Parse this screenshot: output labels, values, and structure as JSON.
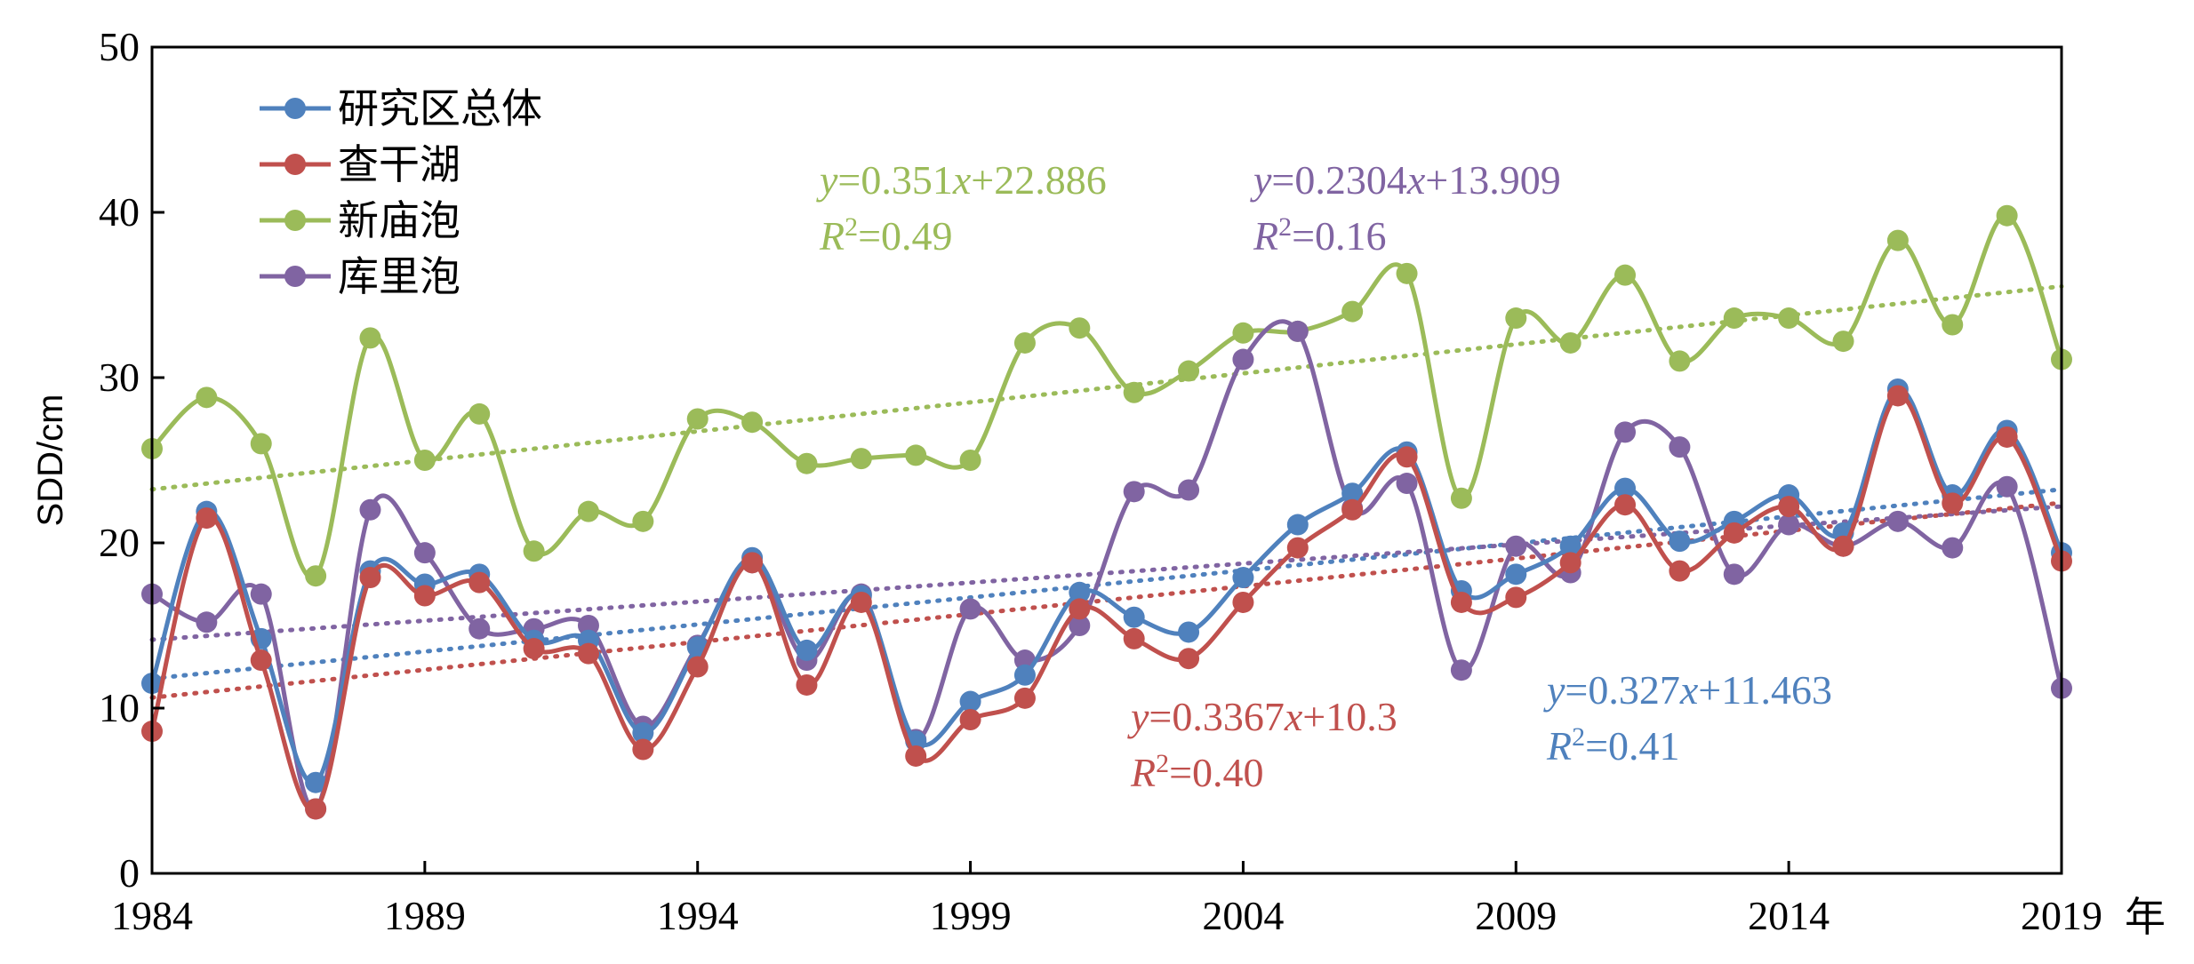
{
  "chart_data": {
    "type": "line",
    "ylabel": "SDD/cm",
    "x_unit": "年",
    "ylim": [
      0,
      50
    ],
    "xlim": [
      1984,
      2019
    ],
    "y_ticks": [
      "0",
      "10",
      "20",
      "30",
      "40",
      "50"
    ],
    "x_ticks": [
      "1984",
      "1989",
      "1994",
      "1999",
      "2004",
      "2009",
      "2014",
      "2019"
    ],
    "x": [
      1984,
      1985,
      1986,
      1987,
      1988,
      1989,
      1990,
      1991,
      1992,
      1993,
      1994,
      1995,
      1996,
      1997,
      1998,
      1999,
      2000,
      2001,
      2002,
      2003,
      2004,
      2005,
      2006,
      2007,
      2008,
      2009,
      2010,
      2011,
      2012,
      2013,
      2014,
      2015,
      2016,
      2017,
      2018,
      2019
    ],
    "series": [
      {
        "name": "研究区总体",
        "color": "#4f81bd",
        "values": [
          11.5,
          21.9,
          14.2,
          5.5,
          18.3,
          17.5,
          18.1,
          14.1,
          14.1,
          8.5,
          13.7,
          19.1,
          13.5,
          16.8,
          8.0,
          10.4,
          12.0,
          17.0,
          15.5,
          14.6,
          17.9,
          21.1,
          23.0,
          25.5,
          17.1,
          18.1,
          19.8,
          23.3,
          20.1,
          21.3,
          22.9,
          20.6,
          29.3,
          22.9,
          26.8,
          19.4
        ],
        "trend": {
          "slope": 0.327,
          "intercept": 11.463,
          "equation": "y=0.327x+11.463",
          "r2": "R2=0.41"
        }
      },
      {
        "name": "查干湖",
        "color": "#c0504d",
        "values": [
          8.6,
          21.5,
          12.9,
          3.9,
          17.9,
          16.8,
          17.6,
          13.6,
          13.3,
          7.5,
          12.5,
          18.8,
          11.4,
          16.4,
          7.1,
          9.3,
          10.6,
          16.0,
          14.2,
          13.0,
          16.4,
          19.7,
          22.0,
          25.2,
          16.4,
          16.7,
          18.8,
          22.3,
          18.3,
          20.6,
          22.2,
          19.8,
          28.9,
          22.4,
          26.4,
          18.9
        ],
        "trend": {
          "slope": 0.3367,
          "intercept": 10.3,
          "equation": "y=0.3367x+10.3",
          "r2": "R2=0.40"
        }
      },
      {
        "name": "新庙泡",
        "color": "#9bbb59",
        "values": [
          25.7,
          28.8,
          26.0,
          18.0,
          32.4,
          25.0,
          27.8,
          19.5,
          21.9,
          21.3,
          27.5,
          27.3,
          24.8,
          25.1,
          25.3,
          25.0,
          32.1,
          33.0,
          29.1,
          30.4,
          32.7,
          32.8,
          34.0,
          36.3,
          22.7,
          33.6,
          32.1,
          36.2,
          31.0,
          33.6,
          33.6,
          32.2,
          38.3,
          33.2,
          39.8,
          31.1
        ],
        "trend": {
          "slope": 0.351,
          "intercept": 22.886,
          "equation": "y=0.351x+22.886",
          "r2": "R2=0.49"
        }
      },
      {
        "name": "库里泡",
        "color": "#8064a2",
        "values": [
          16.9,
          15.2,
          16.9,
          3.9,
          22.0,
          19.4,
          14.8,
          14.8,
          15.0,
          8.9,
          13.8,
          18.8,
          12.9,
          16.9,
          8.1,
          16.0,
          12.9,
          15.0,
          23.1,
          23.2,
          31.1,
          32.8,
          22.1,
          23.6,
          12.3,
          19.8,
          18.2,
          26.7,
          25.8,
          18.1,
          21.1,
          19.8,
          21.3,
          19.7,
          23.4,
          11.2
        ],
        "trend": {
          "slope": 0.2304,
          "intercept": 13.909,
          "equation": "y=0.2304x+13.909",
          "r2": "R2=0.16"
        }
      }
    ]
  }
}
